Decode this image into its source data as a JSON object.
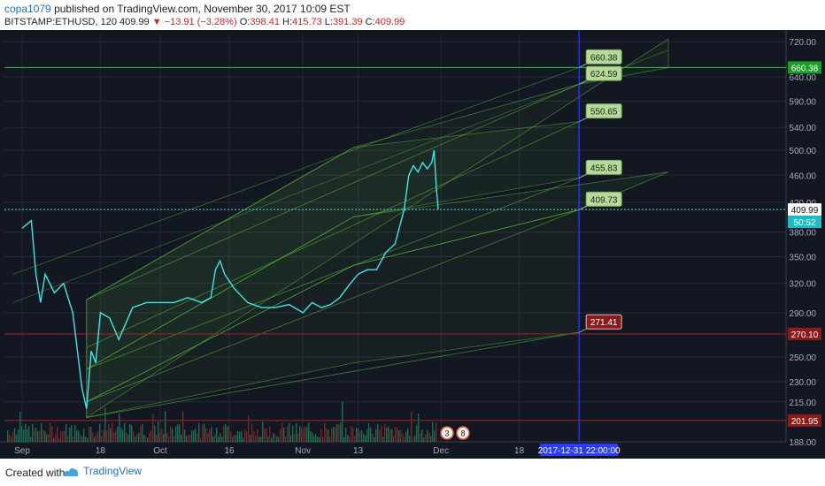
{
  "header": {
    "author": "copa1079",
    "published": "published on TradingView.com, November 30, 2017 10:09 EST"
  },
  "ohlc": {
    "symbol": "BITSTAMP:ETHUSD, 120",
    "last": "409.99",
    "change": "−13.91 (−3.28%)",
    "o_label": "O:",
    "o_value": "398.41",
    "h_label": "H:",
    "h_value": "415.73",
    "l_label": "L:",
    "l_value": "391.39",
    "c_label": "C:",
    "c_value": "409.99"
  },
  "footer": {
    "created": "Created with",
    "brand": "TradingView"
  },
  "colors": {
    "background": "#131722",
    "price_line": "#3ee6e6",
    "channel_fill": "#5cc23a",
    "vertical_marker": "#2b3bff",
    "down_label": "#8b1a1a"
  },
  "chart_data": {
    "type": "line",
    "symbol": "BITSTAMP:ETHUSD",
    "interval": "120",
    "x_ticks": [
      "Sep",
      "18",
      "Oct",
      "16",
      "Nov",
      "13",
      "Dec",
      "18"
    ],
    "y_ticks": [
      "720.00",
      "640.00",
      "590.00",
      "540.00",
      "500.00",
      "460.00",
      "420.00",
      "380.00",
      "350.00",
      "320.00",
      "290.00",
      "250.00",
      "230.00",
      "215.00",
      "188.00"
    ],
    "y_scale": "log",
    "ylim": [
      188,
      740
    ],
    "last_price": "409.99",
    "countdown": "50:52",
    "price_tags": [
      {
        "value": "660.38",
        "color": "#1a9e28"
      },
      {
        "value": "270.10",
        "color": "#8b1a1a"
      },
      {
        "value": "201.95",
        "color": "#8b1a1a"
      }
    ],
    "horizontal_lines": [
      {
        "value": 660.38,
        "color": "#27c93f"
      },
      {
        "value": 270.1,
        "color": "#a02525"
      },
      {
        "value": 201.95,
        "color": "#a02525"
      }
    ],
    "target_date": "2017-12-31 22:00:00",
    "target_labels": [
      {
        "text": "660.38",
        "price": 660.38,
        "style": "up"
      },
      {
        "text": "624.59",
        "price": 624.59,
        "style": "up"
      },
      {
        "text": "550.65",
        "price": 550.65,
        "style": "up"
      },
      {
        "text": "455.83",
        "price": 455.83,
        "style": "up"
      },
      {
        "text": "409.73",
        "price": 409.73,
        "style": "up"
      },
      {
        "text": "271.41",
        "price": 271.41,
        "style": "down"
      }
    ],
    "event_badges": [
      "3",
      "8"
    ],
    "series": [
      {
        "name": "ETHUSD",
        "points": [
          [
            "Sep 1",
            385
          ],
          [
            "Sep 3",
            395
          ],
          [
            "Sep 4",
            330
          ],
          [
            "Sep 5",
            300
          ],
          [
            "Sep 6",
            330
          ],
          [
            "Sep 8",
            310
          ],
          [
            "Sep 10",
            320
          ],
          [
            "Sep 12",
            290
          ],
          [
            "Sep 14",
            225
          ],
          [
            "Sep 15",
            210
          ],
          [
            "Sep 16",
            255
          ],
          [
            "Sep 17",
            245
          ],
          [
            "Sep 18",
            290
          ],
          [
            "Sep 20",
            285
          ],
          [
            "Sep 22",
            265
          ],
          [
            "Sep 25",
            295
          ],
          [
            "Sep 28",
            300
          ],
          [
            "Oct 1",
            300
          ],
          [
            "Oct 4",
            300
          ],
          [
            "Oct 7",
            305
          ],
          [
            "Oct 10",
            300
          ],
          [
            "Oct 12",
            305
          ],
          [
            "Oct 13",
            335
          ],
          [
            "Oct 14",
            345
          ],
          [
            "Oct 15",
            330
          ],
          [
            "Oct 17",
            315
          ],
          [
            "Oct 20",
            300
          ],
          [
            "Oct 23",
            295
          ],
          [
            "Oct 26",
            295
          ],
          [
            "Oct 29",
            298
          ],
          [
            "Nov 1",
            290
          ],
          [
            "Nov 3",
            300
          ],
          [
            "Nov 5",
            295
          ],
          [
            "Nov 7",
            298
          ],
          [
            "Nov 9",
            305
          ],
          [
            "Nov 11",
            318
          ],
          [
            "Nov 13",
            330
          ],
          [
            "Nov 15",
            335
          ],
          [
            "Nov 17",
            335
          ],
          [
            "Nov 19",
            355
          ],
          [
            "Nov 21",
            365
          ],
          [
            "Nov 23",
            410
          ],
          [
            "Nov 24",
            460
          ],
          [
            "Nov 25",
            475
          ],
          [
            "Nov 26",
            465
          ],
          [
            "Nov 27",
            480
          ],
          [
            "Nov 28",
            470
          ],
          [
            "Nov 29",
            480
          ],
          [
            "Nov 29.5",
            500
          ],
          [
            "Nov 30",
            440
          ],
          [
            "Nov 30.4",
            410
          ]
        ]
      }
    ]
  }
}
